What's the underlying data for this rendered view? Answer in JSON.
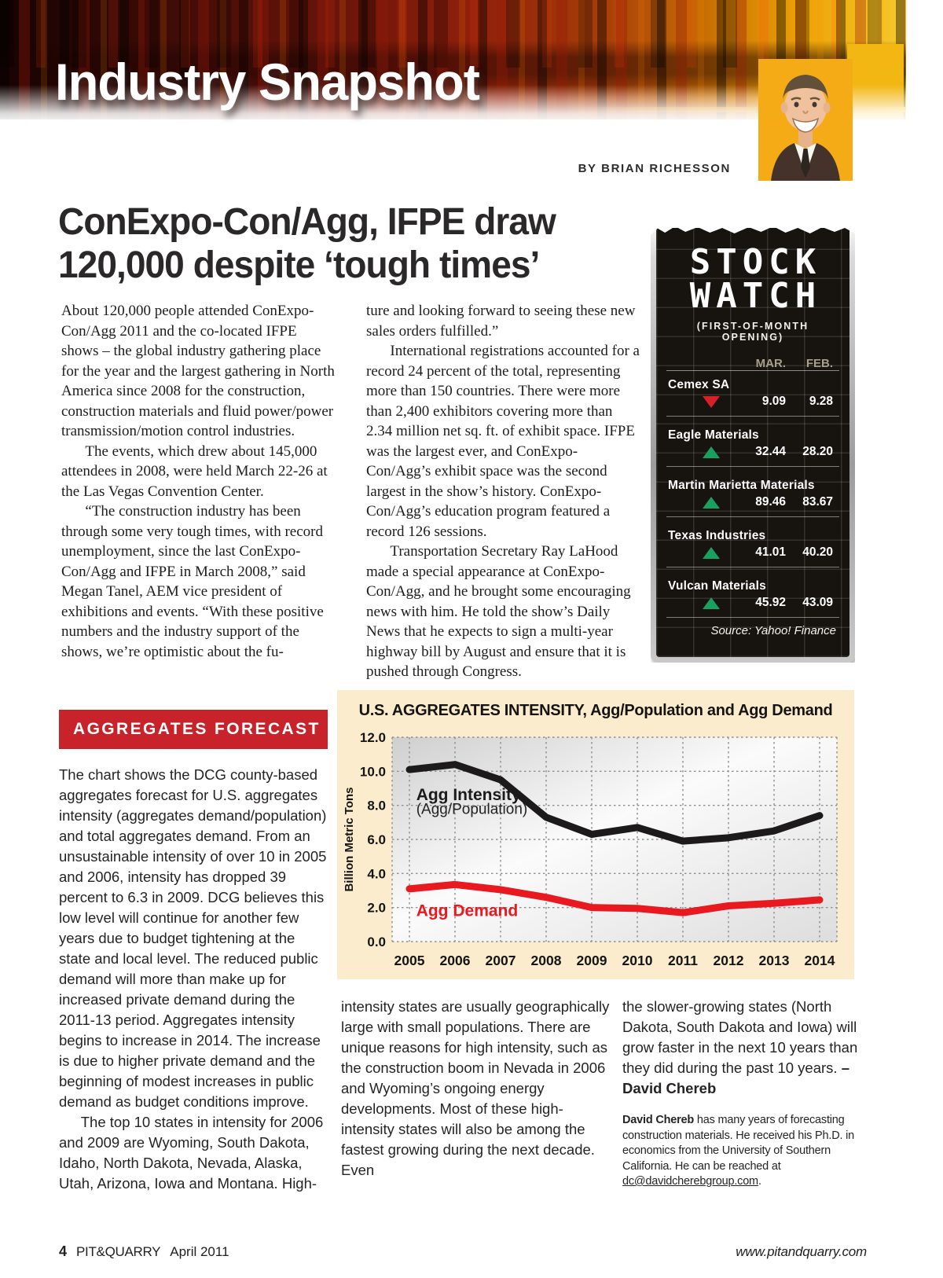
{
  "banner": {
    "title": "Industry Snapshot",
    "byline": "BY BRIAN RICHESSON"
  },
  "article": {
    "headline_lines": [
      "ConExpo-Con/Agg, IFPE draw",
      "120,000 despite ‘tough times’"
    ],
    "col1": [
      "About 120,000 people attended ConExpo-Con/Agg 2011 and the co-located IFPE shows – the global industry gathering place for the year and the largest gathering in North America since 2008 for the construction, construction materials and fluid power/power transmission/motion control industries.",
      "The events, which drew about 145,000 attendees in 2008, were held March 22-26 at the Las Vegas Convention Center.",
      "“The construction industry has been through some very tough times, with record unemployment, since the last ConExpo-Con/Agg and IFPE in March 2008,” said Megan Tanel, AEM vice president of exhibitions and events. “With these positive numbers and the industry support of the shows, we’re optimistic about the fu-"
    ],
    "col2": [
      "ture and looking forward to seeing these new sales orders fulfilled.”",
      "International registrations accounted for a record 24 percent of the total, representing more than 150 countries. There were more than 2,400 exhibitors covering more than 2.34 million net sq. ft. of exhibit space. IFPE was the largest ever, and ConExpo-Con/Agg’s exhibit space was the second largest in the show’s history. ConExpo-Con/Agg’s education program featured a record 126 sessions.",
      "Transportation Secretary Ray LaHood made a special appearance at ConExpo-Con/Agg, and he brought some encouraging news with him. He told the show’s Daily News that he expects to sign a multi-year highway bill by August and ensure that it is pushed through Congress."
    ]
  },
  "stock_watch": {
    "title_line1": "STOCK",
    "title_line2": "WATCH",
    "subtitle": "(FIRST-OF-MONTH OPENING)",
    "columns": [
      "MAR.",
      "FEB."
    ],
    "rows": [
      {
        "name": "Cemex SA",
        "direction": "down",
        "mar": "9.09",
        "feb": "9.28"
      },
      {
        "name": "Eagle Materials",
        "direction": "up",
        "mar": "32.44",
        "feb": "28.20"
      },
      {
        "name": "Martin Marietta Materials",
        "direction": "up",
        "mar": "89.46",
        "feb": "83.67"
      },
      {
        "name": "Texas Industries",
        "direction": "up",
        "mar": "41.01",
        "feb": "40.20"
      },
      {
        "name": "Vulcan Materials",
        "direction": "up",
        "mar": "45.92",
        "feb": "43.09"
      }
    ],
    "source": "Source: Yahoo! Finance",
    "colors": {
      "up": "#18a05f",
      "down": "#d62128"
    }
  },
  "forecast": {
    "label": "AGGREGATES FORECAST",
    "col1": [
      "The chart shows the DCG county-based aggregates forecast for U.S. aggregates intensity (aggregates demand/population) and total aggregates demand. From an unsustainable intensity of over 10 in 2005 and 2006, intensity has dropped 39 percent to 6.3 in 2009. DCG believes this low level will continue for another few years due to budget tightening at the state and local level. The reduced public demand will more than make up for increased private demand during the 2011-13 period. Aggregates intensity begins to increase in 2014. The increase is due to higher private demand and the beginning of modest increases in public demand as budget conditions improve.",
      "The top 10 states in intensity for 2006 and 2009 are Wyoming, South Dakota, Idaho, North Dakota, Nevada, Alaska, Utah, Arizona, Iowa and Montana. High-"
    ],
    "col2": "intensity states are usually geographically large with small populations. There are unique reasons for high intensity, such as the construction boom in Nevada in 2006 and Wyoming’s ongoing energy developments. Most of these high-intensity states will also be among the fastest growing during the next decade. Even",
    "col3_text": "the slower-growing states (North Dakota, South Dakota and Iowa) will grow faster in the next 10 years than they did during the past 10 years. ",
    "col3_author": "– David Chereb",
    "bio_name": "David Chereb",
    "bio_text": " has many years of forecasting construction materials. He received his Ph.D. in economics from the University of Southern California. He can be reached at ",
    "bio_email": "dc@davidcherebgroup.com",
    "bio_suffix": "."
  },
  "chart_data": {
    "type": "line",
    "title": "U.S. AGGREGATES INTENSITY, Agg/Population and Agg Demand",
    "ylabel": "Billion Metric Tons",
    "x": [
      2005,
      2006,
      2007,
      2008,
      2009,
      2010,
      2011,
      2012,
      2013,
      2014
    ],
    "ylim": [
      0,
      12
    ],
    "ytick_step": 2,
    "grid": true,
    "legend_position": "inline",
    "series": [
      {
        "name": "Agg Intensity",
        "sublabel": "(Agg/Population)",
        "color": "#1c1a1a",
        "values": [
          10.1,
          10.4,
          9.5,
          7.3,
          6.3,
          6.7,
          5.9,
          6.1,
          6.5,
          7.4
        ],
        "label_pos": [
          2005.15,
          8.3
        ],
        "sublabel_pos": [
          2005.15,
          7.5
        ]
      },
      {
        "name": "Agg Demand",
        "color": "#e8191f",
        "values": [
          3.1,
          3.35,
          3.05,
          2.6,
          2.0,
          1.95,
          1.7,
          2.1,
          2.25,
          2.45
        ],
        "label_pos": [
          2005.15,
          1.5
        ]
      }
    ]
  },
  "footer": {
    "page_number": "4",
    "magazine": "PIT&QUARRY",
    "issue": "April 2011",
    "website": "www.pitandquarry.com"
  }
}
